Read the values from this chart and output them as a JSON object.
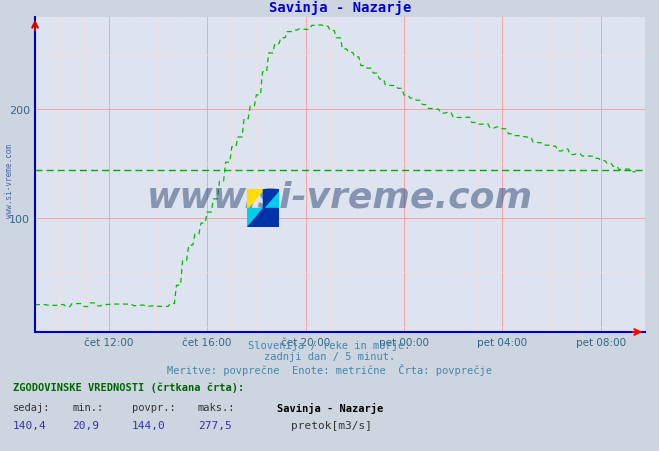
{
  "title": "Savinja - Nazarje",
  "title_color": "#0000cc",
  "bg_color": "#ccd5e0",
  "plot_bg_color": "#dde4ef",
  "grid_major_color": "#ff9999",
  "grid_minor_color": "#ffdddd",
  "line_color": "#00bb00",
  "avg_line_color": "#00aa00",
  "avg_value": 144.0,
  "x_ticks_h": [
    12,
    16,
    20,
    24,
    28,
    32
  ],
  "x_tick_labels": [
    "čet 12:00",
    "čet 16:00",
    "čet 20:00",
    "pet 00:00",
    "pet 04:00",
    "pet 08:00"
  ],
  "y_ticks": [
    100,
    200
  ],
  "ylim": [
    -5,
    285
  ],
  "xlim": [
    9.0,
    33.8
  ],
  "footer_line1": "Slovenija / reke in morje.",
  "footer_line2": "zadnji dan / 5 minut.",
  "footer_line3": "Meritve: povprečne  Enote: metrične  Črta: povprečje",
  "footer_color": "#4488aa",
  "bottom_label1": "ZGODOVINSKE VREDNOSTI (črtkana črta):",
  "bottom_col_headers": [
    "sedaj:",
    "min.:",
    "povpr.:",
    "maks.:"
  ],
  "bottom_col_values": [
    "140,4",
    "20,9",
    "144,0",
    "277,5"
  ],
  "bottom_station": "Savinja - Nazarje",
  "bottom_unit": "pretok[m3/s]",
  "watermark": "www.si-vreme.com",
  "watermark_color": "#1a3566",
  "left_label": "www.si-vreme.com",
  "axis_color": "#0000bb",
  "tick_color": "#336688"
}
